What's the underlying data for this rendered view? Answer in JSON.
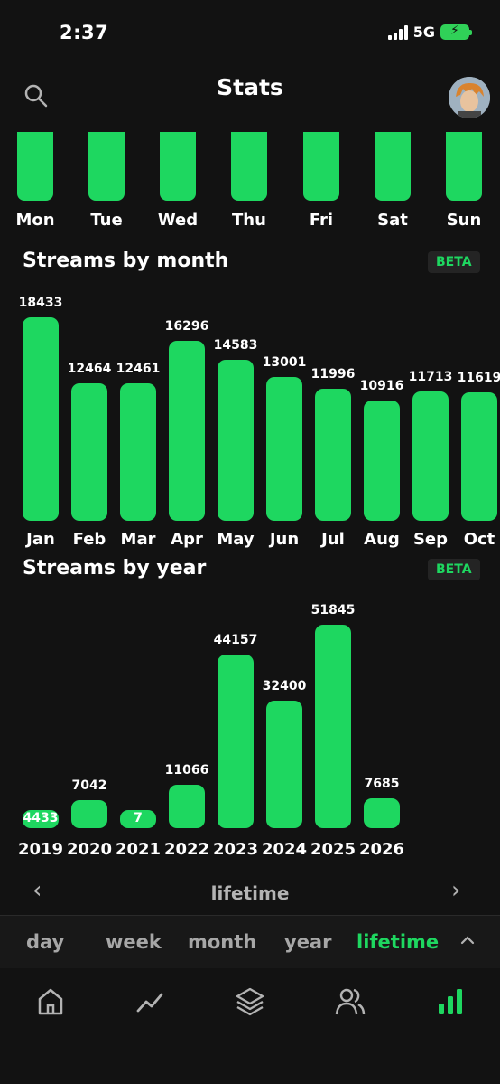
{
  "status": {
    "time": "2:37",
    "network": "5G"
  },
  "header": {
    "title": "Stats"
  },
  "weekdays": [
    "Mon",
    "Tue",
    "Wed",
    "Thu",
    "Fri",
    "Sat",
    "Sun"
  ],
  "month_section": {
    "title": "Streams by month",
    "badge": "BETA"
  },
  "year_section": {
    "title": "Streams by year",
    "badge": "BETA"
  },
  "chart_data": [
    {
      "type": "bar",
      "title": "Streams by month",
      "categories": [
        "Jan",
        "Feb",
        "Mar",
        "Apr",
        "May",
        "Jun",
        "Jul",
        "Aug",
        "Sep",
        "Oct"
      ],
      "values": [
        18433,
        12464,
        12461,
        16296,
        14583,
        13001,
        11996,
        10916,
        11713,
        11619
      ],
      "value_labels": [
        "18433",
        "12464",
        "12461",
        "16296",
        "14583",
        "13001",
        "11996",
        "10916",
        "11713",
        "11619"
      ]
    },
    {
      "type": "bar",
      "title": "Streams by year",
      "categories": [
        "2019",
        "2020",
        "2021",
        "2022",
        "2023",
        "2024",
        "2025",
        "2026"
      ],
      "values": [
        4433,
        7042,
        7,
        11066,
        44157,
        32400,
        51845,
        7685
      ],
      "value_labels": [
        "4433",
        "7042",
        "7",
        "11066",
        "44157",
        "32400",
        "51845",
        "7685"
      ]
    }
  ],
  "pager": {
    "label": "lifetime"
  },
  "range_tabs": [
    {
      "label": "day",
      "active": false
    },
    {
      "label": "week",
      "active": false
    },
    {
      "label": "month",
      "active": false
    },
    {
      "label": "year",
      "active": false
    },
    {
      "label": "lifetime",
      "active": true
    }
  ],
  "colors": {
    "accent": "#1ed760",
    "background": "#121212"
  },
  "nav_icons": [
    "home-icon",
    "trend-icon",
    "layers-icon",
    "friends-icon",
    "stats-icon"
  ]
}
